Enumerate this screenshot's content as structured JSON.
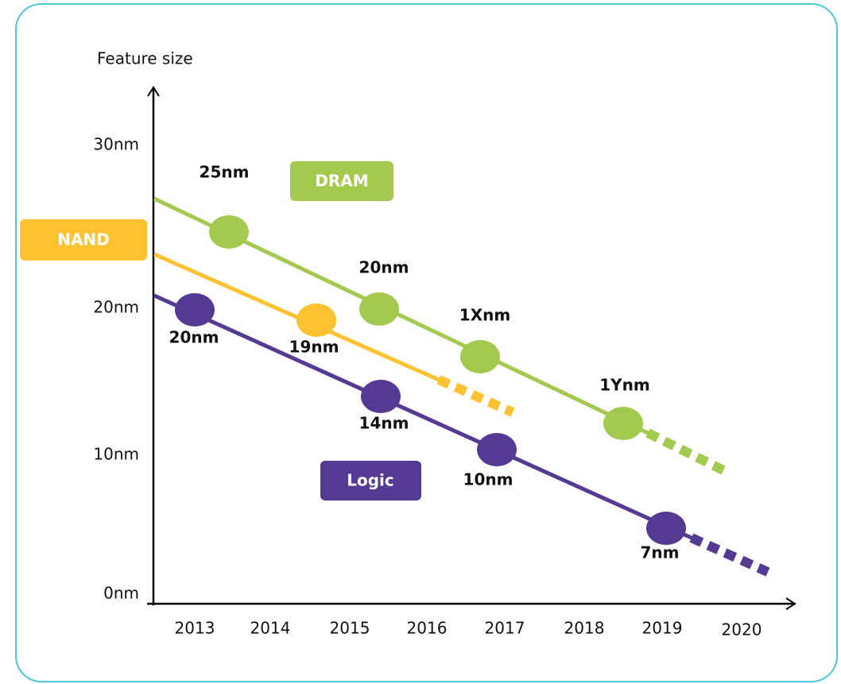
{
  "axis": {
    "y_label": "Feature size",
    "y_ticks": [
      "30nm",
      "20nm",
      "10nm",
      "0nm"
    ],
    "x_ticks": [
      "2013",
      "2014",
      "2015",
      "2016",
      "2017",
      "2018",
      "2019",
      "2020"
    ]
  },
  "series": [
    {
      "name": "DRAM",
      "points": [
        "25nm",
        "20nm",
        "1Xnm",
        "1Ynm"
      ]
    },
    {
      "name": "NAND",
      "points": [
        "19nm"
      ]
    },
    {
      "name": "Logic",
      "points": [
        "20nm",
        "14nm",
        "10nm",
        "7nm"
      ]
    }
  ]
}
